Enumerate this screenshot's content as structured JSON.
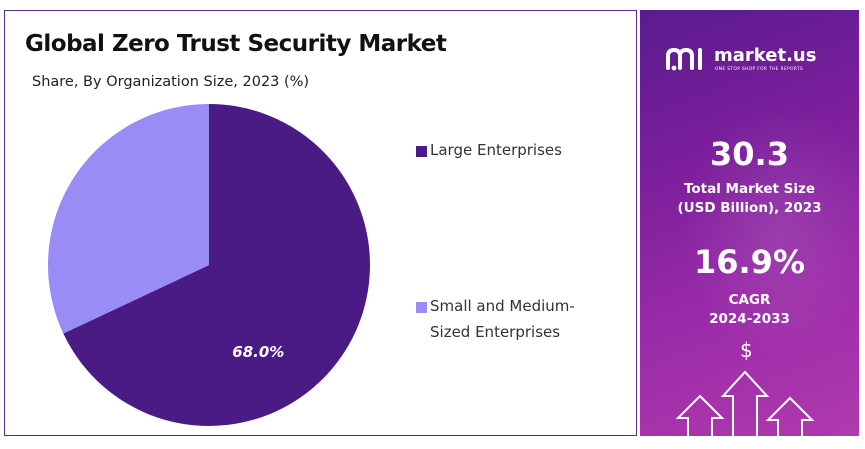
{
  "chart": {
    "title": "Global Zero Trust Security Market",
    "subtitle": "Share, By Organization Size, 2023 (%)"
  },
  "chart_data": {
    "type": "pie",
    "title": "Global Zero Trust Security Market",
    "subtitle": "Share, By Organization Size, 2023 (%)",
    "slices": [
      {
        "label": "Large Enterprises",
        "value": 68.0,
        "color": "#4a1a85",
        "data_label": "68.0%"
      },
      {
        "label": "Small and Medium-Sized Enterprises",
        "value": 32.0,
        "color": "#9a8cf7",
        "data_label": ""
      }
    ],
    "legend_position": "right"
  },
  "legend": {
    "items": [
      {
        "lines": [
          "Large Enterprises"
        ],
        "color": "#4a1a85"
      },
      {
        "lines": [
          "Small and Medium-",
          "Sized Enterprises"
        ],
        "color": "#9a8cf7"
      }
    ]
  },
  "sidebar": {
    "brand_name": "market.us",
    "brand_tagline": "ONE STOP SHOP FOR THE REPORTS",
    "market_size_value": "30.3",
    "market_size_label_1": "Total Market Size",
    "market_size_label_2": "(USD Billion), 2023",
    "cagr_value": "16.9%",
    "cagr_label_1": "CAGR",
    "cagr_label_2": "2024-2033",
    "dollar_icon": "$",
    "icons": [
      "market-us-logo-icon",
      "dollar-icon",
      "up-arrow-icon"
    ]
  }
}
